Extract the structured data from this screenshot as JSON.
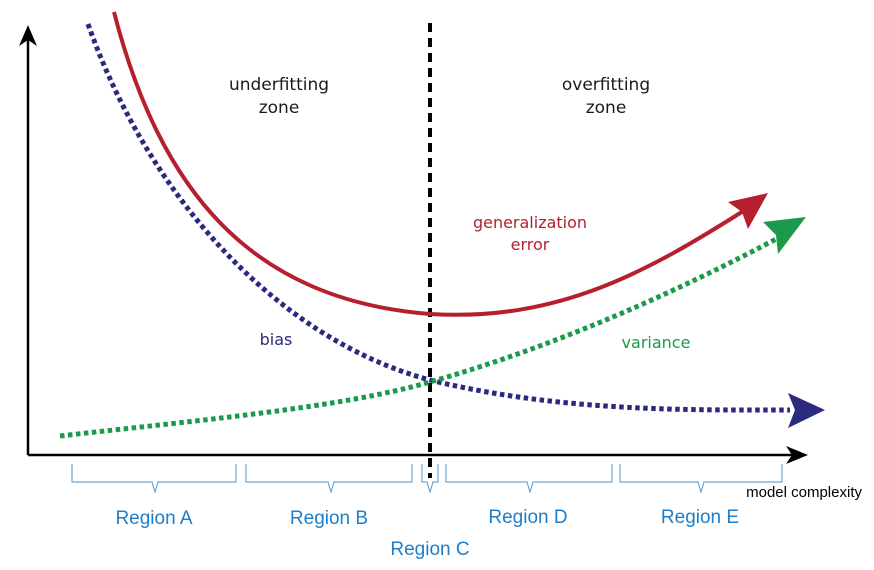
{
  "zones": {
    "left": [
      "underfitting",
      "zone"
    ],
    "right": [
      "overfitting",
      "zone"
    ]
  },
  "curves": {
    "generalization_error": {
      "label": [
        "generalization",
        "error"
      ],
      "color": "#b51f2e"
    },
    "bias": {
      "label": "bias",
      "color": "#2a2a80"
    },
    "variance": {
      "label": "variance",
      "color": "#1a9a4a"
    }
  },
  "axes": {
    "x_label": "model complexity"
  },
  "regions": [
    "Region A",
    "Region B",
    "Region C",
    "Region D",
    "Region E"
  ],
  "colors": {
    "optimum_line": "#000000",
    "region_text": "#1e7ec8",
    "axis": "#000000"
  }
}
